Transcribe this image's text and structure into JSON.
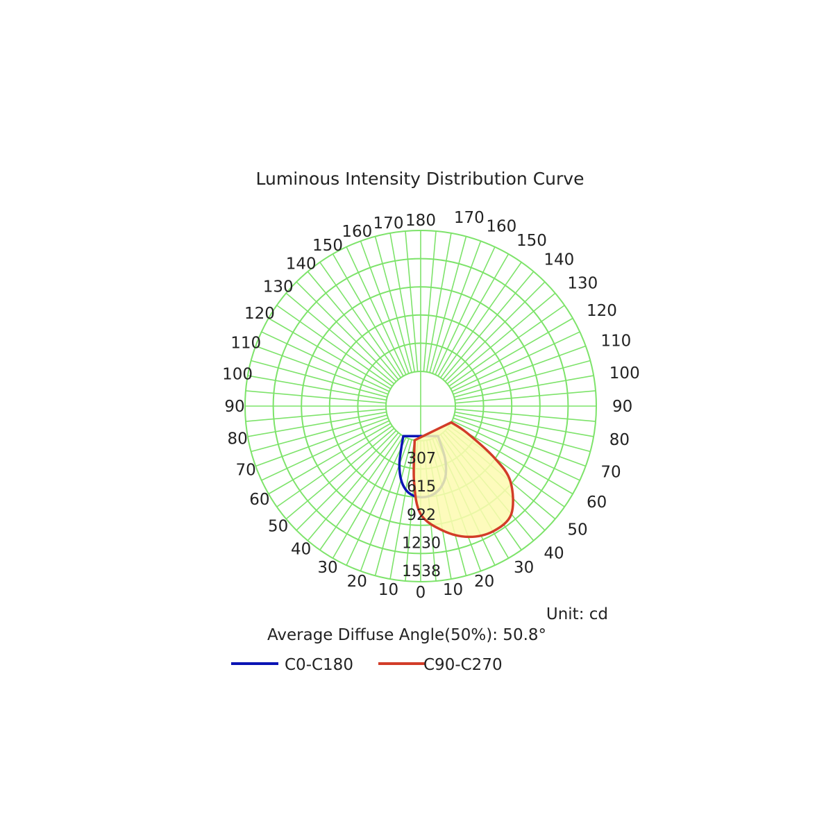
{
  "chart_data": {
    "type": "polar",
    "title": "Luminous Intensity Distribution Curve",
    "unit_text": "Unit: cd",
    "average_angle_text": "Average Diffuse Angle(50%): 50.8°",
    "radial_ticks": [
      "307",
      "615",
      "922",
      "1230",
      "1538"
    ],
    "radial_max": 1538,
    "angle_labels": {
      "left": [
        "0",
        "10",
        "20",
        "30",
        "40",
        "50",
        "60",
        "70",
        "80",
        "90",
        "100",
        "110",
        "120",
        "130",
        "140",
        "150",
        "160",
        "170",
        "180"
      ],
      "right": [
        "10",
        "20",
        "30",
        "40",
        "50",
        "60",
        "70",
        "80",
        "90",
        "100",
        "110",
        "120",
        "130",
        "140",
        "150",
        "160",
        "170"
      ]
    },
    "grid": true,
    "legend_position": "bottom",
    "series": [
      {
        "name": "C0-C180",
        "color": "#0a14b4",
        "fill": false,
        "points": [
          {
            "angle": -30,
            "value": 0
          },
          {
            "angle": -25,
            "value": 120
          },
          {
            "angle": -20,
            "value": 300
          },
          {
            "angle": -15,
            "value": 450
          },
          {
            "angle": -10,
            "value": 550
          },
          {
            "angle": -5,
            "value": 600
          },
          {
            "angle": 0,
            "value": 615
          },
          {
            "angle": 5,
            "value": 610
          },
          {
            "angle": 10,
            "value": 580
          },
          {
            "angle": 15,
            "value": 520
          },
          {
            "angle": 20,
            "value": 420
          },
          {
            "angle": 25,
            "value": 250
          },
          {
            "angle": 30,
            "value": 0
          }
        ]
      },
      {
        "name": "C90-C270",
        "color": "#d23c28",
        "fill": true,
        "fill_color": "#fdfab0",
        "points": [
          {
            "angle": -10,
            "value": 0
          },
          {
            "angle": -5,
            "value": 450
          },
          {
            "angle": 0,
            "value": 800
          },
          {
            "angle": 10,
            "value": 1000
          },
          {
            "angle": 20,
            "value": 1140
          },
          {
            "angle": 30,
            "value": 1200
          },
          {
            "angle": 40,
            "value": 1160
          },
          {
            "angle": 50,
            "value": 900
          },
          {
            "angle": 55,
            "value": 600
          },
          {
            "angle": 60,
            "value": 200
          },
          {
            "angle": 62,
            "value": 0
          }
        ]
      }
    ]
  }
}
